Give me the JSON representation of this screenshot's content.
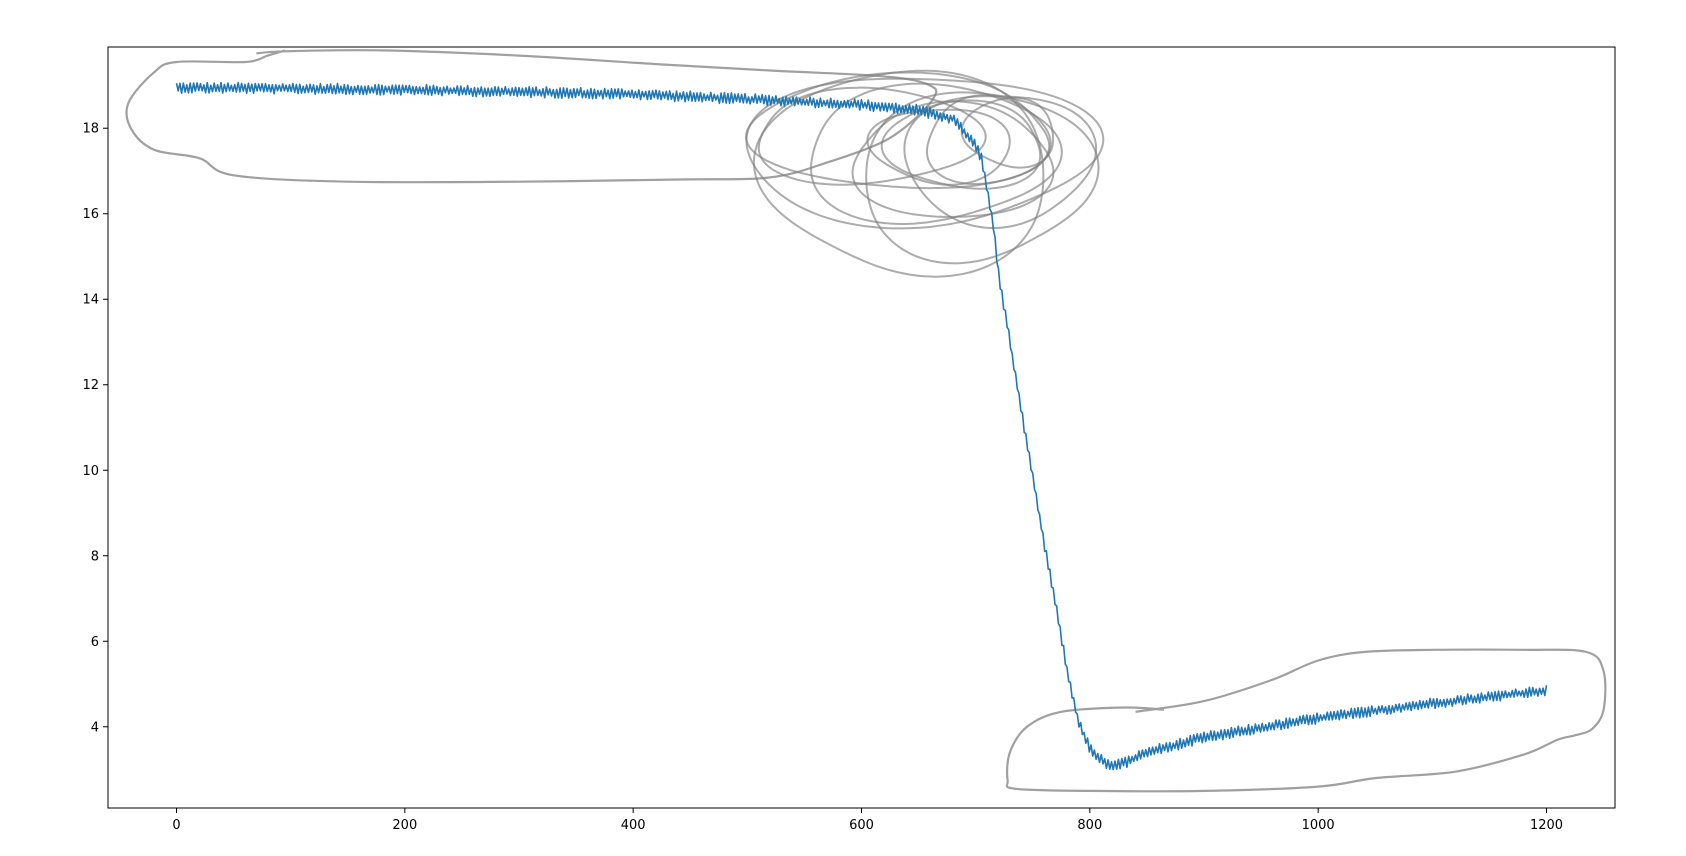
{
  "chart_data": {
    "type": "line",
    "title": "",
    "xlabel": "",
    "ylabel": "",
    "xlim": [
      -60,
      1260
    ],
    "ylim": [
      2.1,
      19.9
    ],
    "grid": false,
    "x_ticks": [
      {
        "value": 0,
        "label": "0"
      },
      {
        "value": 200,
        "label": "200"
      },
      {
        "value": 400,
        "label": "400"
      },
      {
        "value": 600,
        "label": "600"
      },
      {
        "value": 800,
        "label": "800"
      },
      {
        "value": 1000,
        "label": "1000"
      },
      {
        "value": 1200,
        "label": "1200"
      }
    ],
    "y_ticks": [
      {
        "value": 4,
        "label": "4"
      },
      {
        "value": 6,
        "label": "6"
      },
      {
        "value": 8,
        "label": "8"
      },
      {
        "value": 10,
        "label": "10"
      },
      {
        "value": 12,
        "label": "12"
      },
      {
        "value": 14,
        "label": "14"
      },
      {
        "value": 16,
        "label": "16"
      },
      {
        "value": 18,
        "label": "18"
      }
    ],
    "series": [
      {
        "color": "#1f77b4",
        "style": "solid",
        "noise_amplitude": 0.13,
        "points": [
          [
            0,
            18.95
          ],
          [
            100,
            18.93
          ],
          [
            200,
            18.9
          ],
          [
            300,
            18.85
          ],
          [
            400,
            18.8
          ],
          [
            500,
            18.68
          ],
          [
            600,
            18.55
          ],
          [
            650,
            18.42
          ],
          [
            680,
            18.22
          ],
          [
            700,
            17.6
          ],
          [
            705,
            17.3
          ],
          [
            715,
            15.8
          ],
          [
            720,
            14.6
          ],
          [
            730,
            13.0
          ],
          [
            745,
            10.6
          ],
          [
            760,
            8.3
          ],
          [
            770,
            6.9
          ],
          [
            780,
            5.3
          ],
          [
            790,
            4.1
          ],
          [
            800,
            3.5
          ],
          [
            815,
            3.1
          ],
          [
            830,
            3.15
          ],
          [
            850,
            3.4
          ],
          [
            900,
            3.75
          ],
          [
            1000,
            4.2
          ],
          [
            1100,
            4.55
          ],
          [
            1200,
            4.85
          ]
        ]
      },
      {
        "color": "#808080",
        "style": "hand-drawn",
        "loops": [
          {
            "cx": 650,
            "cy": 17.5,
            "rx": 150,
            "ry": 1.8,
            "phase": 0.6
          },
          {
            "cx": 660,
            "cy": 17.4,
            "rx": 110,
            "ry": 1.6,
            "phase": 1.8
          },
          {
            "cx": 680,
            "cy": 17.2,
            "rx": 90,
            "ry": 1.3,
            "phase": 3.1
          },
          {
            "cx": 690,
            "cy": 17.6,
            "rx": 70,
            "ry": 1.0,
            "phase": 4.2
          },
          {
            "cx": 640,
            "cy": 17.0,
            "rx": 125,
            "ry": 2.4,
            "phase": 5.0
          },
          {
            "cx": 710,
            "cy": 17.7,
            "rx": 55,
            "ry": 1.0,
            "phase": 2.4
          },
          {
            "cx": 720,
            "cy": 17.3,
            "rx": 80,
            "ry": 1.6,
            "phase": 0.3
          },
          {
            "cx": 635,
            "cy": 17.9,
            "rx": 135,
            "ry": 1.3,
            "phase": 3.8
          },
          {
            "cx": 700,
            "cy": 16.9,
            "rx": 100,
            "ry": 2.0,
            "phase": 1.2
          },
          {
            "cx": 670,
            "cy": 17.6,
            "rx": 60,
            "ry": 0.9,
            "phase": 5.6
          },
          {
            "cx": 730,
            "cy": 17.9,
            "rx": 40,
            "ry": 0.8,
            "phase": 4.6
          },
          {
            "cx": 605,
            "cy": 17.8,
            "rx": 100,
            "ry": 1.1,
            "phase": 2.0
          }
        ],
        "paths": [
          [
            [
              70,
              19.75
            ],
            [
              95,
              19.8
            ],
            [
              180,
              19.82
            ],
            [
              300,
              19.7
            ],
            [
              420,
              19.5
            ],
            [
              520,
              19.35
            ],
            [
              600,
              19.25
            ],
            [
              640,
              19.15
            ],
            [
              660,
              19.0
            ],
            [
              665,
              18.8
            ],
            [
              650,
              18.3
            ],
            [
              620,
              17.7
            ],
            [
              570,
              17.2
            ],
            [
              520,
              16.85
            ],
            [
              440,
              16.8
            ],
            [
              300,
              16.75
            ],
            [
              150,
              16.75
            ],
            [
              50,
              16.9
            ],
            [
              20,
              17.3
            ],
            [
              -20,
              17.5
            ],
            [
              -40,
              18.0
            ],
            [
              -42,
              18.6
            ],
            [
              -20,
              19.3
            ],
            [
              0,
              19.55
            ],
            [
              60,
              19.55
            ],
            [
              80,
              19.7
            ],
            [
              95,
              19.82
            ]
          ],
          [
            [
              840,
              4.35
            ],
            [
              900,
              4.6
            ],
            [
              960,
              5.1
            ],
            [
              1000,
              5.55
            ],
            [
              1040,
              5.75
            ],
            [
              1100,
              5.8
            ],
            [
              1180,
              5.8
            ],
            [
              1235,
              5.75
            ],
            [
              1250,
              5.3
            ],
            [
              1250,
              4.4
            ],
            [
              1240,
              3.95
            ],
            [
              1225,
              3.8
            ],
            [
              1210,
              3.7
            ],
            [
              1180,
              3.35
            ],
            [
              1120,
              2.95
            ],
            [
              1050,
              2.8
            ],
            [
              1000,
              2.6
            ],
            [
              900,
              2.5
            ],
            [
              800,
              2.5
            ],
            [
              735,
              2.55
            ],
            [
              728,
              2.75
            ],
            [
              730,
              3.4
            ],
            [
              745,
              4.0
            ],
            [
              775,
              4.35
            ],
            [
              830,
              4.45
            ],
            [
              865,
              4.4
            ]
          ]
        ]
      }
    ]
  }
}
